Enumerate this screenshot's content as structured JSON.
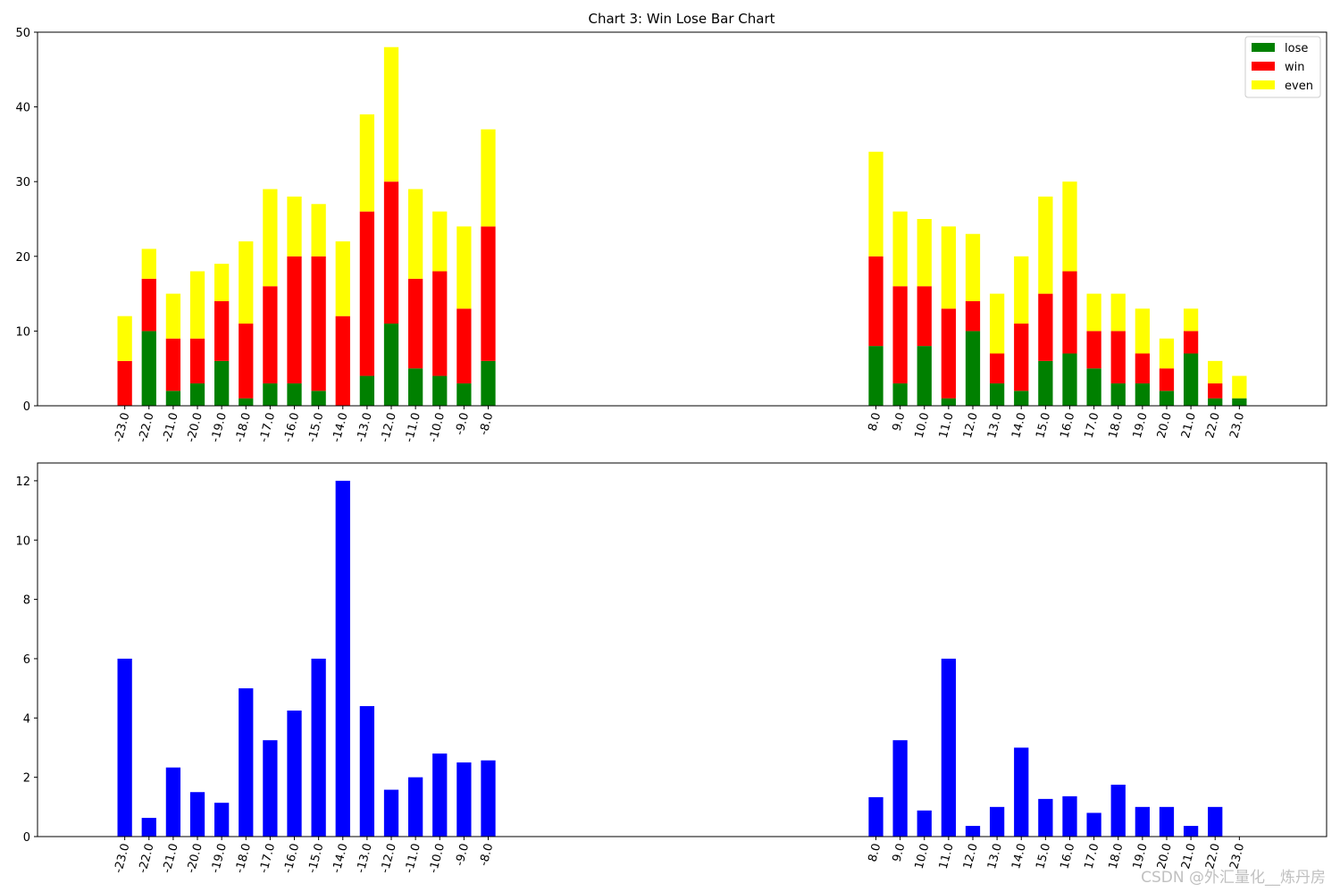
{
  "chart_data": [
    {
      "type": "bar",
      "stacked": true,
      "title": "Chart 3: Win Lose Bar Chart",
      "xlabel": "",
      "ylabel": "",
      "ylim": [
        0,
        50
      ],
      "yticks": [
        0,
        10,
        20,
        30,
        40,
        50
      ],
      "legend_position": "top-right",
      "grid": false,
      "categories": [
        -23.0,
        -22.0,
        -21.0,
        -20.0,
        -19.0,
        -18.0,
        -17.0,
        -16.0,
        -15.0,
        -14.0,
        -13.0,
        -12.0,
        -11.0,
        -10.0,
        -9.0,
        -8.0,
        8.0,
        9.0,
        10.0,
        11.0,
        12.0,
        13.0,
        14.0,
        15.0,
        16.0,
        17.0,
        18.0,
        19.0,
        20.0,
        21.0,
        22.0,
        23.0
      ],
      "tick_labels": [
        "-23.0",
        "-22.0",
        "-21.0",
        "-20.0",
        "-19.0",
        "-18.0",
        "-17.0",
        "-16.0",
        "-15.0",
        "-14.0",
        "-13.0",
        "-12.0",
        "-11.0",
        "-10.0",
        "-9.0",
        "-8.0",
        "8.0",
        "9.0",
        "10.0",
        "11.0",
        "12.0",
        "13.0",
        "14.0",
        "15.0",
        "16.0",
        "17.0",
        "18.0",
        "19.0",
        "20.0",
        "21.0",
        "22.0",
        "23.0"
      ],
      "series": [
        {
          "name": "lose",
          "color": "#008000",
          "values": [
            0,
            10,
            2,
            3,
            6,
            1,
            3,
            3,
            2,
            0,
            4,
            11,
            5,
            4,
            3,
            6,
            8,
            3,
            8,
            1,
            10,
            3,
            2,
            6,
            7,
            5,
            3,
            3,
            2,
            7,
            1,
            1
          ]
        },
        {
          "name": "win",
          "color": "#ff0000",
          "values": [
            6,
            7,
            7,
            6,
            8,
            10,
            13,
            17,
            18,
            12,
            22,
            19,
            12,
            14,
            10,
            18,
            12,
            13,
            8,
            12,
            4,
            4,
            9,
            9,
            11,
            5,
            7,
            4,
            3,
            3,
            2,
            0
          ]
        },
        {
          "name": "even",
          "color": "#ffff00",
          "values": [
            6,
            4,
            6,
            9,
            5,
            11,
            13,
            8,
            7,
            10,
            13,
            18,
            12,
            8,
            11,
            13,
            14,
            10,
            9,
            11,
            9,
            8,
            9,
            13,
            12,
            5,
            5,
            6,
            4,
            3,
            3,
            3
          ]
        }
      ]
    },
    {
      "type": "bar",
      "title": "",
      "xlabel": "",
      "ylabel": "",
      "ylim": [
        0,
        12.6
      ],
      "yticks": [
        0,
        2,
        4,
        6,
        8,
        10,
        12
      ],
      "grid": false,
      "categories": [
        -23.0,
        -22.0,
        -21.0,
        -20.0,
        -19.0,
        -18.0,
        -17.0,
        -16.0,
        -15.0,
        -14.0,
        -13.0,
        -12.0,
        -11.0,
        -10.0,
        -9.0,
        -8.0,
        8.0,
        9.0,
        10.0,
        11.0,
        12.0,
        13.0,
        14.0,
        15.0,
        16.0,
        17.0,
        18.0,
        19.0,
        20.0,
        21.0,
        22.0,
        23.0
      ],
      "tick_labels": [
        "-23.0",
        "-22.0",
        "-21.0",
        "-20.0",
        "-19.0",
        "-18.0",
        "-17.0",
        "-16.0",
        "-15.0",
        "-14.0",
        "-13.0",
        "-12.0",
        "-11.0",
        "-10.0",
        "-9.0",
        "-8.0",
        "8.0",
        "9.0",
        "10.0",
        "11.0",
        "12.0",
        "13.0",
        "14.0",
        "15.0",
        "16.0",
        "17.0",
        "18.0",
        "19.0",
        "20.0",
        "21.0",
        "22.0",
        "23.0"
      ],
      "series": [
        {
          "color": "#0000ff",
          "values": [
            6.0,
            0.63,
            2.33,
            1.5,
            1.14,
            5.0,
            3.25,
            4.25,
            6.0,
            12.0,
            4.4,
            1.58,
            2.0,
            2.8,
            2.5,
            2.57,
            1.33,
            3.25,
            0.88,
            6.0,
            0.36,
            1.0,
            3.0,
            1.27,
            1.36,
            0.8,
            1.75,
            1.0,
            1.0,
            0.36,
            1.0,
            0.0
          ]
        }
      ]
    }
  ],
  "watermark": "CSDN @外汇量化__炼丹房"
}
